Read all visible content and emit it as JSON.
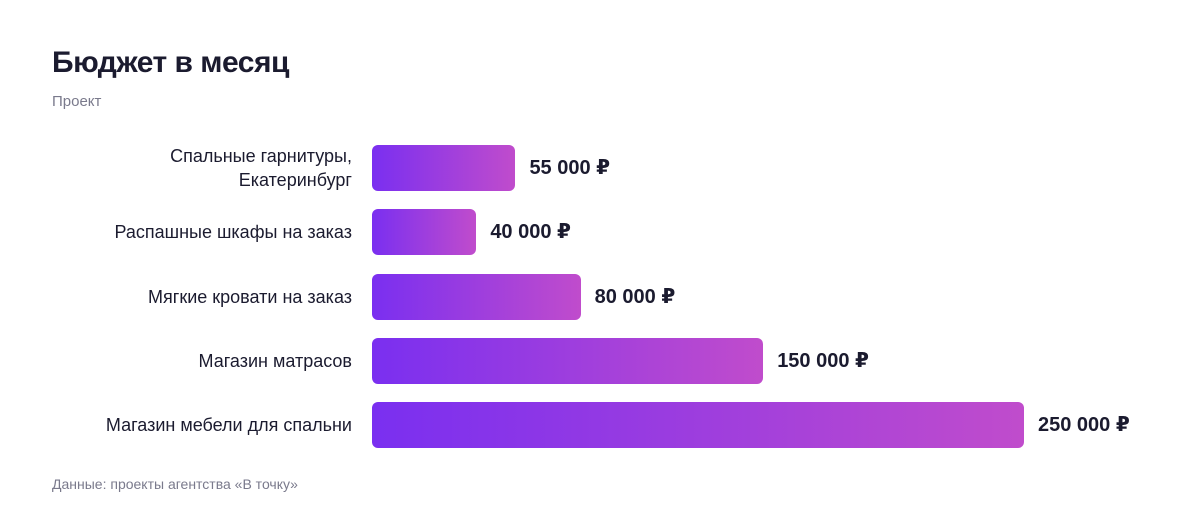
{
  "chart_data": {
    "type": "bar",
    "orientation": "horizontal",
    "title": "Бюджет в месяц",
    "subtitle": "Проект",
    "source": "Данные: проекты агентства «В точку»",
    "categories": [
      "Спальные гарнитуры, Екатеринбург",
      "Распашные шкафы на заказ",
      "Мягкие кровати на заказ",
      "Магазин матрасов",
      "Магазин мебели для спальни"
    ],
    "values": [
      55000,
      40000,
      80000,
      150000,
      250000
    ],
    "value_labels": [
      "55 000 ₽",
      "40 000 ₽",
      "80 000 ₽",
      "150 000 ₽",
      "250 000 ₽"
    ]
  }
}
